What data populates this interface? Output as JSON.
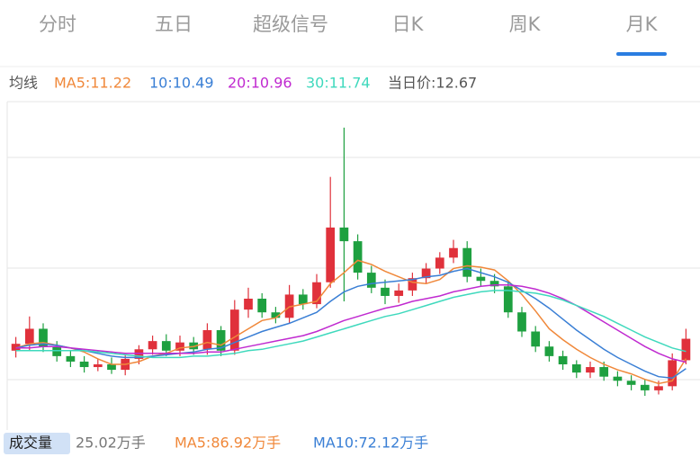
{
  "tabs": [
    "分时",
    "五日",
    "超级信号",
    "日K",
    "周K",
    "月K"
  ],
  "active_tab": 5,
  "legend": {
    "label": "均线",
    "ma5": "MA5:11.22",
    "ma10": "10:10.49",
    "ma20": "20:10.96",
    "ma30": "30:11.74",
    "price": "当日价:12.67"
  },
  "volume": {
    "label": "成交量",
    "value": "25.02万手",
    "ma5": "MA5:86.92万手",
    "ma10": "MA10:72.12万手"
  },
  "chart_data": {
    "type": "candlestick",
    "up_color": "#e0313b",
    "down_color": "#1ea040",
    "ylim": [
      6,
      30
    ],
    "open": [
      11.8,
      12.3,
      13.4,
      12.1,
      11.4,
      11.0,
      10.6,
      10.8,
      10.4,
      11.2,
      11.9,
      12.5,
      11.8,
      12.4,
      11.9,
      13.3,
      11.8,
      14.8,
      15.6,
      14.6,
      14.2,
      15.9,
      15.2,
      16.8,
      20.8,
      19.8,
      17.5,
      16.4,
      15.8,
      16.2,
      17.1,
      17.8,
      18.6,
      19.3,
      17.2,
      16.9,
      16.5,
      14.6,
      13.2,
      12.1,
      11.4,
      10.8,
      10.2,
      10.6,
      9.9,
      9.6,
      9.3,
      8.9,
      9.2,
      11.1
    ],
    "high": [
      12.8,
      14.3,
      13.8,
      12.5,
      11.8,
      11.4,
      11.2,
      11.3,
      11.5,
      12.2,
      12.9,
      13.0,
      12.9,
      12.8,
      13.8,
      13.6,
      15.5,
      16.4,
      16.0,
      15.0,
      16.6,
      16.3,
      17.4,
      24.5,
      28.1,
      20.3,
      18.0,
      17.0,
      16.7,
      17.5,
      18.2,
      19.0,
      19.9,
      19.8,
      17.8,
      17.4,
      16.9,
      15.0,
      13.6,
      12.5,
      11.8,
      11.1,
      11.0,
      11.0,
      10.3,
      10.0,
      9.7,
      9.6,
      11.6,
      13.4
    ],
    "low": [
      11.3,
      11.8,
      11.7,
      11.0,
      10.6,
      10.2,
      10.3,
      10.1,
      10.0,
      10.8,
      11.5,
      11.4,
      11.4,
      11.5,
      11.5,
      11.4,
      11.5,
      14.2,
      14.2,
      13.8,
      13.8,
      14.8,
      14.9,
      16.4,
      15.4,
      17.0,
      16.0,
      15.2,
      15.3,
      15.8,
      16.7,
      17.4,
      18.2,
      16.8,
      16.5,
      16.0,
      14.2,
      12.8,
      11.7,
      11.0,
      10.4,
      9.8,
      9.8,
      9.6,
      9.2,
      8.9,
      8.5,
      8.6,
      8.9,
      10.8
    ],
    "close": [
      12.3,
      13.4,
      12.1,
      11.4,
      11.0,
      10.6,
      10.8,
      10.4,
      11.2,
      11.9,
      12.5,
      11.8,
      12.4,
      11.9,
      13.3,
      11.8,
      14.8,
      15.6,
      14.6,
      14.2,
      15.9,
      15.2,
      16.8,
      20.8,
      19.8,
      17.5,
      16.4,
      15.8,
      16.2,
      17.1,
      17.8,
      18.6,
      19.3,
      17.2,
      16.9,
      16.5,
      14.6,
      13.2,
      12.1,
      11.4,
      10.8,
      10.2,
      10.6,
      9.9,
      9.6,
      9.3,
      8.9,
      9.2,
      11.1,
      12.67
    ],
    "lines": [
      {
        "color": "#f0883a",
        "values": [
          12.0,
          12.3,
          12.4,
          12.2,
          12.0,
          11.7,
          11.2,
          10.8,
          10.8,
          11.0,
          11.4,
          11.6,
          12.0,
          12.1,
          12.4,
          12.2,
          12.8,
          13.4,
          14.0,
          14.2,
          15.0,
          15.2,
          15.4,
          16.7,
          17.5,
          18.4,
          18.1,
          17.6,
          17.2,
          16.8,
          16.7,
          17.0,
          17.8,
          18.0,
          17.9,
          17.7,
          16.9,
          15.9,
          14.7,
          13.4,
          12.6,
          11.9,
          11.3,
          10.8,
          10.4,
          10.1,
          9.7,
          9.4,
          9.6,
          11.22
        ]
      },
      {
        "color": "#3a7fd5",
        "values": [
          12.0,
          12.2,
          12.3,
          12.2,
          12.0,
          11.8,
          11.6,
          11.4,
          11.3,
          11.3,
          11.4,
          11.5,
          11.6,
          11.7,
          11.9,
          12.0,
          12.4,
          12.8,
          13.2,
          13.5,
          13.8,
          14.2,
          14.6,
          15.4,
          16.1,
          16.5,
          16.7,
          16.8,
          16.9,
          17.0,
          17.2,
          17.3,
          17.6,
          17.8,
          17.5,
          17.2,
          16.8,
          16.2,
          15.6,
          14.9,
          14.1,
          13.3,
          12.6,
          11.9,
          11.3,
          10.8,
          10.3,
          9.9,
          9.8,
          10.49
        ]
      },
      {
        "color": "#c02ad0",
        "values": [
          12.0,
          12.0,
          12.1,
          12.1,
          12.0,
          11.9,
          11.8,
          11.7,
          11.6,
          11.6,
          11.6,
          11.6,
          11.6,
          11.6,
          11.7,
          11.7,
          11.9,
          12.1,
          12.3,
          12.5,
          12.7,
          12.9,
          13.2,
          13.6,
          14.0,
          14.3,
          14.6,
          14.9,
          15.1,
          15.4,
          15.6,
          15.8,
          16.1,
          16.3,
          16.5,
          16.6,
          16.6,
          16.5,
          16.3,
          16.0,
          15.6,
          15.1,
          14.5,
          13.9,
          13.3,
          12.7,
          12.1,
          11.6,
          11.2,
          10.96
        ]
      },
      {
        "color": "#3fd9bd",
        "values": [
          11.8,
          11.8,
          11.8,
          11.8,
          11.8,
          11.8,
          11.7,
          11.6,
          11.5,
          11.4,
          11.3,
          11.3,
          11.3,
          11.4,
          11.4,
          11.5,
          11.6,
          11.8,
          11.9,
          12.1,
          12.3,
          12.5,
          12.8,
          13.1,
          13.4,
          13.7,
          14.0,
          14.3,
          14.5,
          14.8,
          15.1,
          15.4,
          15.7,
          15.9,
          16.1,
          16.2,
          16.2,
          16.1,
          16.0,
          15.8,
          15.5,
          15.1,
          14.7,
          14.3,
          13.8,
          13.3,
          12.8,
          12.4,
          12.0,
          11.74
        ]
      }
    ]
  }
}
